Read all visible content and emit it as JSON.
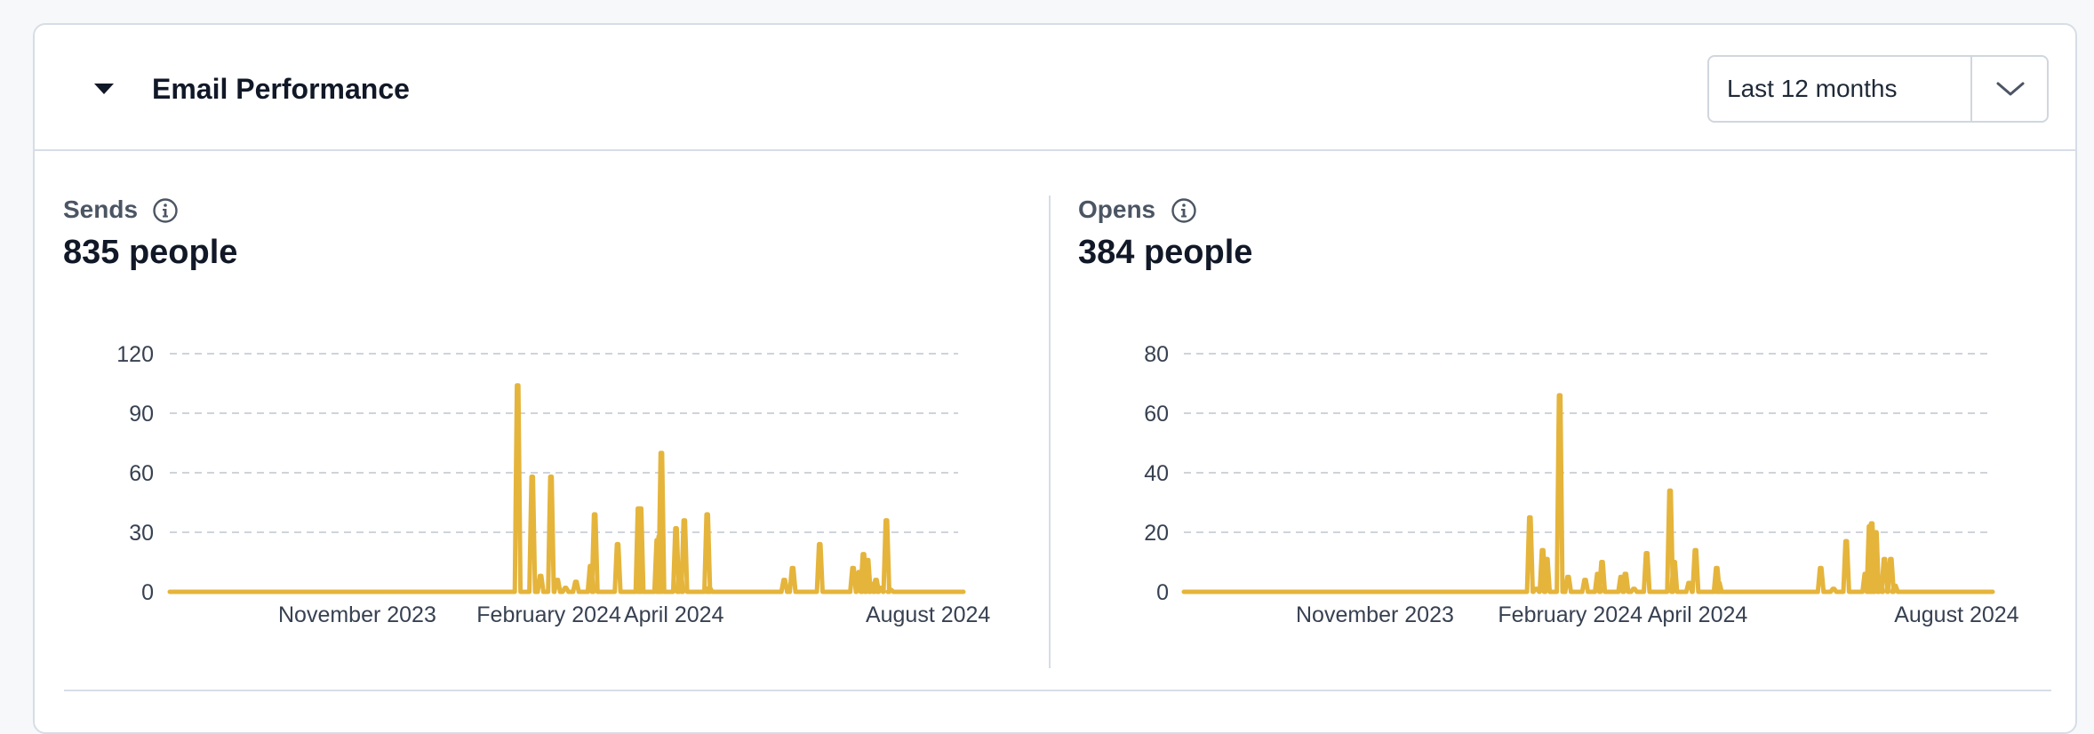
{
  "header": {
    "title": "Email Performance",
    "range_value": "Last 12 months"
  },
  "icons": {
    "collapse": "caret-down-icon",
    "range_chevron": "chevron-down-icon",
    "info": "info-icon"
  },
  "colors": {
    "series": "#e5b43b",
    "grid": "#cfd3da",
    "axis_text": "#374151"
  },
  "panels": [
    {
      "label": "Sends",
      "value": "835 people"
    },
    {
      "label": "Opens",
      "value": "384 people"
    }
  ],
  "chart_data": [
    {
      "type": "line",
      "title": "Sends",
      "xlabel": "",
      "ylabel": "",
      "x_range": [
        "2023-08-17",
        "2024-09-01"
      ],
      "ylim": [
        0,
        120
      ],
      "yticks": [
        0,
        30,
        60,
        90,
        120
      ],
      "xticks": [
        {
          "date": "2023-11-15",
          "label": "November 2023"
        },
        {
          "date": "2024-02-15",
          "label": "February 2024"
        },
        {
          "date": "2024-04-15",
          "label": "April 2024"
        },
        {
          "date": "2024-08-15",
          "label": "August 2024"
        }
      ],
      "grid": true,
      "series": [
        {
          "name": "Sends",
          "spikes": [
            {
              "date": "2024-01-31",
              "value": 104
            },
            {
              "date": "2024-02-07",
              "value": 58
            },
            {
              "date": "2024-02-11",
              "value": 8
            },
            {
              "date": "2024-02-16",
              "value": 58
            },
            {
              "date": "2024-02-19",
              "value": 6
            },
            {
              "date": "2024-02-23",
              "value": 2
            },
            {
              "date": "2024-02-28",
              "value": 5
            },
            {
              "date": "2024-03-06",
              "value": 13
            },
            {
              "date": "2024-03-08",
              "value": 39
            },
            {
              "date": "2024-03-19",
              "value": 24
            },
            {
              "date": "2024-03-29",
              "value": 42
            },
            {
              "date": "2024-03-30",
              "value": 42
            },
            {
              "date": "2024-04-07",
              "value": 26
            },
            {
              "date": "2024-04-08",
              "value": 28
            },
            {
              "date": "2024-04-09",
              "value": 70
            },
            {
              "date": "2024-04-16",
              "value": 32
            },
            {
              "date": "2024-04-18",
              "value": 12
            },
            {
              "date": "2024-04-20",
              "value": 36
            },
            {
              "date": "2024-05-01",
              "value": 39
            },
            {
              "date": "2024-05-02",
              "value": 2
            },
            {
              "date": "2024-06-07",
              "value": 6
            },
            {
              "date": "2024-06-11",
              "value": 12
            },
            {
              "date": "2024-06-24",
              "value": 24
            },
            {
              "date": "2024-07-10",
              "value": 12
            },
            {
              "date": "2024-07-13",
              "value": 10
            },
            {
              "date": "2024-07-15",
              "value": 19
            },
            {
              "date": "2024-07-17",
              "value": 16
            },
            {
              "date": "2024-07-19",
              "value": 4
            },
            {
              "date": "2024-07-21",
              "value": 6
            },
            {
              "date": "2024-07-23",
              "value": 2
            },
            {
              "date": "2024-07-26",
              "value": 36
            },
            {
              "date": "2024-07-28",
              "value": 1
            }
          ]
        }
      ]
    },
    {
      "type": "line",
      "title": "Opens",
      "xlabel": "",
      "ylabel": "",
      "x_range": [
        "2023-08-17",
        "2024-09-01"
      ],
      "ylim": [
        0,
        80
      ],
      "yticks": [
        0,
        20,
        40,
        60,
        80
      ],
      "xticks": [
        {
          "date": "2023-11-15",
          "label": "November 2023"
        },
        {
          "date": "2024-02-15",
          "label": "February 2024"
        },
        {
          "date": "2024-04-15",
          "label": "April 2024"
        },
        {
          "date": "2024-08-15",
          "label": "August 2024"
        }
      ],
      "grid": true,
      "series": [
        {
          "name": "Opens",
          "spikes": [
            {
              "date": "2024-01-27",
              "value": 25
            },
            {
              "date": "2024-01-30",
              "value": 1
            },
            {
              "date": "2024-02-02",
              "value": 14
            },
            {
              "date": "2024-02-04",
              "value": 11
            },
            {
              "date": "2024-02-10",
              "value": 66
            },
            {
              "date": "2024-02-14",
              "value": 5
            },
            {
              "date": "2024-02-22",
              "value": 4
            },
            {
              "date": "2024-02-28",
              "value": 6
            },
            {
              "date": "2024-03-01",
              "value": 10
            },
            {
              "date": "2024-03-10",
              "value": 5
            },
            {
              "date": "2024-03-12",
              "value": 6
            },
            {
              "date": "2024-03-16",
              "value": 1
            },
            {
              "date": "2024-03-22",
              "value": 13
            },
            {
              "date": "2024-04-02",
              "value": 34
            },
            {
              "date": "2024-04-04",
              "value": 10
            },
            {
              "date": "2024-04-11",
              "value": 3
            },
            {
              "date": "2024-04-14",
              "value": 14
            },
            {
              "date": "2024-04-24",
              "value": 8
            },
            {
              "date": "2024-04-25",
              "value": 3
            },
            {
              "date": "2024-06-12",
              "value": 8
            },
            {
              "date": "2024-06-18",
              "value": 1
            },
            {
              "date": "2024-06-24",
              "value": 17
            },
            {
              "date": "2024-07-03",
              "value": 6
            },
            {
              "date": "2024-07-05",
              "value": 22
            },
            {
              "date": "2024-07-06",
              "value": 23
            },
            {
              "date": "2024-07-08",
              "value": 20
            },
            {
              "date": "2024-07-10",
              "value": 3
            },
            {
              "date": "2024-07-12",
              "value": 11
            },
            {
              "date": "2024-07-15",
              "value": 11
            },
            {
              "date": "2024-07-17",
              "value": 2
            }
          ]
        }
      ]
    }
  ]
}
